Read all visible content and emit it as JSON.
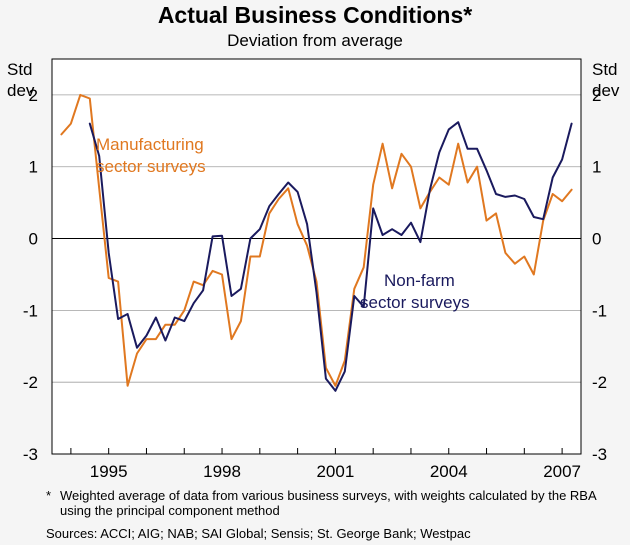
{
  "chart_data": {
    "type": "line",
    "title": "Actual Business Conditions*",
    "subtitle": "Deviation from average",
    "ylabel_left": [
      "Std",
      "dev"
    ],
    "ylabel_right": [
      "Std",
      "dev"
    ],
    "ylim": [
      -3,
      2.5
    ],
    "yticks": [
      2,
      1,
      0,
      -1,
      -2,
      -3
    ],
    "xlim": [
      1993.5,
      2007.5
    ],
    "xticks": [
      1995,
      1998,
      2001,
      2004,
      2007
    ],
    "xtick_labels": [
      "1995",
      "1998",
      "2001",
      "2004",
      "2007"
    ],
    "series": [
      {
        "name": "Manufacturing sector surveys",
        "label_lines": [
          "Manufacturing",
          "sector surveys"
        ],
        "color": "#e07820",
        "x": [
          1993.75,
          1994.0,
          1994.25,
          1994.5,
          1994.75,
          1995.0,
          1995.25,
          1995.5,
          1995.75,
          1996.0,
          1996.25,
          1996.5,
          1996.75,
          1997.0,
          1997.25,
          1997.5,
          1997.75,
          1998.0,
          1998.25,
          1998.5,
          1998.75,
          1999.0,
          1999.25,
          1999.5,
          1999.75,
          2000.0,
          2000.25,
          2000.5,
          2000.75,
          2001.0,
          2001.25,
          2001.5,
          2001.75,
          2002.0,
          2002.25,
          2002.5,
          2002.75,
          2003.0,
          2003.25,
          2003.5,
          2003.75,
          2004.0,
          2004.25,
          2004.5,
          2004.75,
          2005.0,
          2005.25,
          2005.5,
          2005.75,
          2006.0,
          2006.25,
          2006.5,
          2006.75,
          2007.0,
          2007.25
        ],
        "values": [
          1.45,
          1.6,
          2.0,
          1.95,
          0.7,
          -0.55,
          -0.6,
          -2.05,
          -1.6,
          -1.4,
          -1.4,
          -1.2,
          -1.2,
          -1.0,
          -0.6,
          -0.65,
          -0.45,
          -0.5,
          -1.4,
          -1.15,
          -0.25,
          -0.25,
          0.35,
          0.55,
          0.7,
          0.2,
          -0.1,
          -0.6,
          -1.8,
          -2.05,
          -1.7,
          -0.7,
          -0.4,
          0.75,
          1.32,
          0.7,
          1.18,
          1.0,
          0.42,
          0.65,
          0.85,
          0.75,
          1.32,
          0.78,
          1.0,
          0.25,
          0.35,
          -0.2,
          -0.35,
          -0.25,
          -0.5,
          0.25,
          0.62,
          0.52,
          0.68
        ]
      },
      {
        "name": "Non-farm sector surveys",
        "label_lines": [
          "Non-farm",
          "sector surveys"
        ],
        "color": "#1a1a5e",
        "x": [
          1994.5,
          1994.75,
          1995.0,
          1995.25,
          1995.5,
          1995.75,
          1996.0,
          1996.25,
          1996.5,
          1996.75,
          1997.0,
          1997.25,
          1997.5,
          1997.75,
          1998.0,
          1998.25,
          1998.5,
          1998.75,
          1999.0,
          1999.25,
          1999.5,
          1999.75,
          2000.0,
          2000.25,
          2000.5,
          2000.75,
          2001.0,
          2001.25,
          2001.5,
          2001.75,
          2002.0,
          2002.25,
          2002.5,
          2002.75,
          2003.0,
          2003.25,
          2003.5,
          2003.75,
          2004.0,
          2004.25,
          2004.5,
          2004.75,
          2005.0,
          2005.25,
          2005.5,
          2005.75,
          2006.0,
          2006.25,
          2006.5,
          2006.75,
          2007.0,
          2007.25
        ],
        "values": [
          1.6,
          1.15,
          -0.2,
          -1.12,
          -1.05,
          -1.52,
          -1.35,
          -1.1,
          -1.42,
          -1.1,
          -1.15,
          -0.9,
          -0.72,
          0.03,
          0.04,
          -0.8,
          -0.7,
          0.0,
          0.13,
          0.45,
          0.62,
          0.78,
          0.65,
          0.2,
          -0.75,
          -1.95,
          -2.12,
          -1.85,
          -0.8,
          -0.95,
          0.42,
          0.05,
          0.13,
          0.05,
          0.22,
          -0.05,
          0.68,
          1.2,
          1.52,
          1.62,
          1.25,
          1.25,
          0.95,
          0.62,
          0.58,
          0.6,
          0.55,
          0.3,
          0.27,
          0.85,
          1.1,
          1.6
        ]
      }
    ],
    "footnote": "Weighted average of data from various business surveys, with weights calculated by the RBA using the principal component method",
    "footnote_mark": "*",
    "sources": "Sources: ACCI; AIG; NAB; SAI Global; Sensis; St. George Bank; Westpac"
  }
}
